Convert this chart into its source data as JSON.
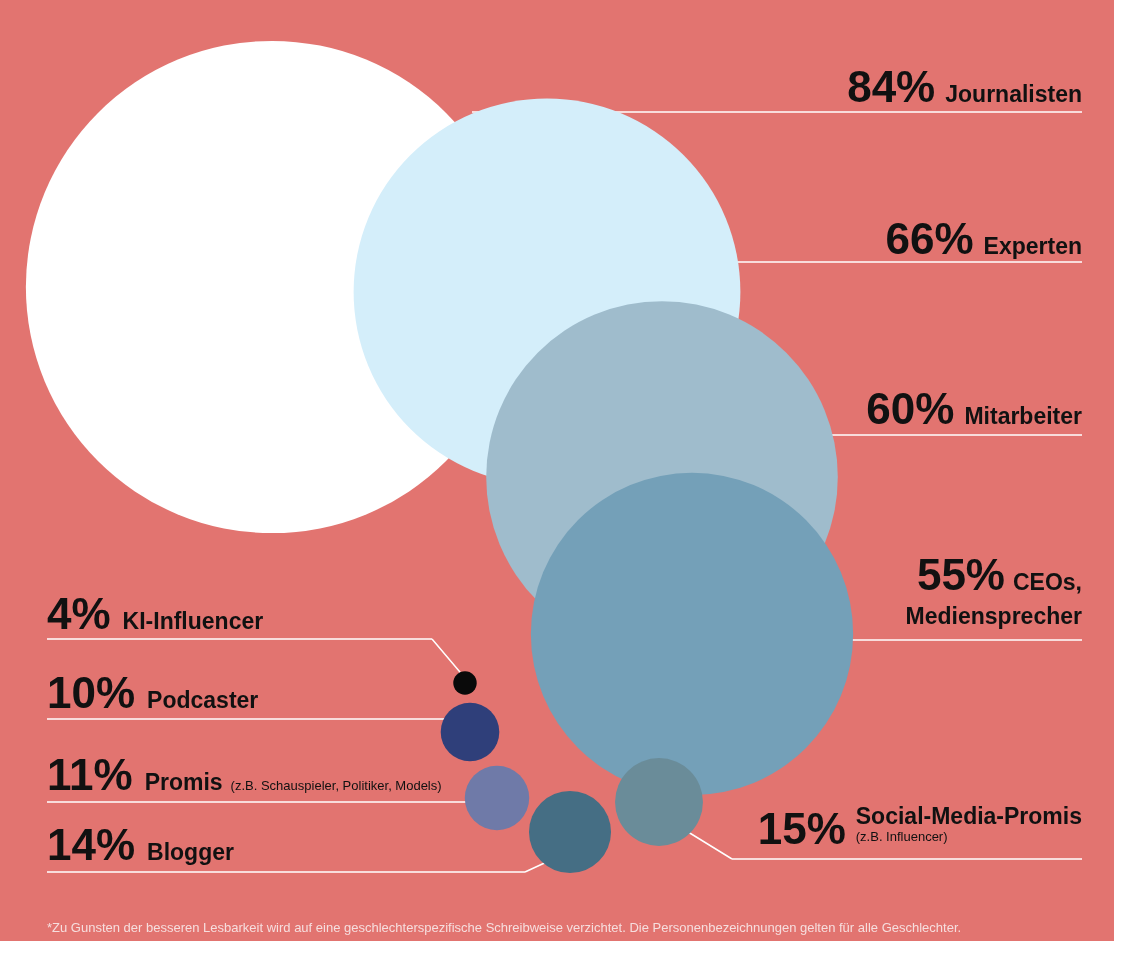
{
  "chart_data": {
    "type": "other",
    "categories": [
      "Journalisten",
      "Experten",
      "Mitarbeiter",
      "CEOs, Mediensprecher",
      "KI-Influencer",
      "Podcaster",
      "Promis (z.B. Schauspieler, Politiker, Models)",
      "Blogger",
      "Social-Media-Promis (z.B. Influencer)"
    ],
    "values": [
      84,
      66,
      60,
      55,
      4,
      10,
      11,
      14,
      15
    ],
    "value_labels": [
      "84%",
      "66%",
      "60%",
      "55%",
      "4%",
      "10%",
      "11%",
      "14%",
      "15%"
    ],
    "colors": [
      "#ffffff",
      "#d4eefa",
      "#9fbccc",
      "#74a0b8",
      "#0a0a0a",
      "#2f3f7a",
      "#6f7aa8",
      "#456e84",
      "#6a8c99"
    ],
    "annotations": [
      "*Zu Gunsten der besseren Lesbarkeit wird auf eine geschlechterspezifische Schreibweise verzichtet. Die Personenbezeichnungen gelten für alle Geschlechter."
    ]
  }
}
